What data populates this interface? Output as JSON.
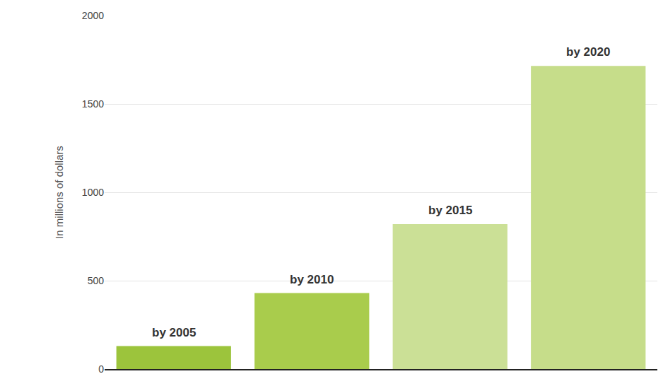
{
  "chart_data": {
    "type": "bar",
    "y_label": "In millions of dollars",
    "categories": [
      "by 2005",
      "by 2010",
      "by 2015",
      "by 2020"
    ],
    "values": [
      130,
      430,
      820,
      1715
    ],
    "colors": [
      "#9cc43c",
      "#a9cc4c",
      "#cbe096",
      "#c6dd8a"
    ],
    "ylim": [
      0,
      2000
    ],
    "yticks": [
      0,
      500,
      1000,
      1500,
      2000
    ],
    "grid": true,
    "tick_labels": "y"
  }
}
